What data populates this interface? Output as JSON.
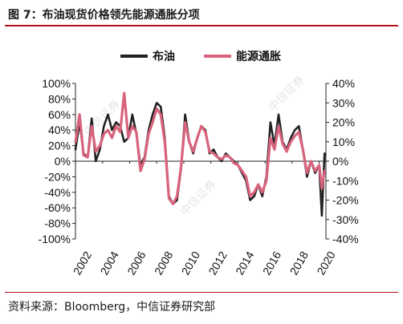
{
  "figure": {
    "title": "图 7：布油现货价格领先能源通胀分项",
    "source": "资料来源：Bloomberg，中信证券研究部",
    "watermark": "中信证券"
  },
  "chart_data": {
    "type": "line",
    "title": "",
    "xlabel": "",
    "ylabel": "",
    "xlim": [
      2002,
      2020.5
    ],
    "x_ticks": [
      "2002",
      "2004",
      "2006",
      "2008",
      "2010",
      "2012",
      "2014",
      "2016",
      "2018",
      "2020"
    ],
    "y_left": {
      "lim": [
        -100,
        100
      ],
      "ticks": [
        "100%",
        "80%",
        "60%",
        "40%",
        "20%",
        "0%",
        "-20%",
        "-40%",
        "-60%",
        "-80%",
        "-100%"
      ]
    },
    "y_right": {
      "lim": [
        -40,
        40
      ],
      "ticks": [
        "40%",
        "30%",
        "20%",
        "10%",
        "0%",
        "-10%",
        "-20%",
        "-30%",
        "-40%"
      ]
    },
    "legend_position": "top-center",
    "grid": false,
    "series": [
      {
        "name": "布油",
        "axis": "left",
        "color": "#222222",
        "x": [
          2002.0,
          2002.3,
          2002.6,
          2002.9,
          2003.2,
          2003.5,
          2003.8,
          2004.1,
          2004.4,
          2004.7,
          2005.0,
          2005.3,
          2005.6,
          2005.9,
          2006.2,
          2006.5,
          2006.8,
          2007.1,
          2007.4,
          2007.7,
          2008.0,
          2008.3,
          2008.6,
          2008.9,
          2009.2,
          2009.5,
          2009.8,
          2010.1,
          2010.4,
          2010.7,
          2011.0,
          2011.3,
          2011.6,
          2011.9,
          2012.2,
          2012.5,
          2012.8,
          2013.1,
          2013.4,
          2013.7,
          2014.0,
          2014.3,
          2014.6,
          2014.9,
          2015.2,
          2015.5,
          2015.8,
          2016.1,
          2016.4,
          2016.7,
          2017.0,
          2017.3,
          2017.6,
          2017.9,
          2018.2,
          2018.5,
          2018.8,
          2019.1,
          2019.4,
          2019.7,
          2020.0,
          2020.2,
          2020.4
        ],
        "values": [
          15,
          50,
          10,
          5,
          55,
          0,
          15,
          45,
          60,
          40,
          50,
          45,
          25,
          30,
          60,
          35,
          -5,
          5,
          40,
          60,
          75,
          70,
          30,
          -45,
          -55,
          -50,
          -10,
          60,
          25,
          10,
          30,
          45,
          40,
          10,
          15,
          5,
          0,
          10,
          5,
          0,
          -5,
          -15,
          -25,
          -50,
          -45,
          -30,
          -45,
          -20,
          50,
          20,
          60,
          25,
          15,
          30,
          40,
          45,
          15,
          -20,
          0,
          -15,
          -5,
          -70,
          10
        ]
      },
      {
        "name": "能源通胀",
        "axis": "right",
        "color": "#d9637c",
        "x": [
          2002.0,
          2002.3,
          2002.6,
          2002.9,
          2003.2,
          2003.5,
          2003.8,
          2004.1,
          2004.4,
          2004.7,
          2005.0,
          2005.3,
          2005.6,
          2005.9,
          2006.2,
          2006.5,
          2006.8,
          2007.1,
          2007.4,
          2007.7,
          2008.0,
          2008.3,
          2008.6,
          2008.9,
          2009.2,
          2009.5,
          2009.8,
          2010.1,
          2010.4,
          2010.7,
          2011.0,
          2011.3,
          2011.6,
          2011.9,
          2012.2,
          2012.5,
          2012.8,
          2013.1,
          2013.4,
          2013.7,
          2014.0,
          2014.3,
          2014.6,
          2014.9,
          2015.2,
          2015.5,
          2015.8,
          2016.1,
          2016.4,
          2016.7,
          2017.0,
          2017.3,
          2017.6,
          2017.9,
          2018.2,
          2018.5,
          2018.8,
          2019.1,
          2019.4,
          2019.7,
          2020.0,
          2020.2,
          2020.4
        ],
        "values": [
          10,
          24,
          3,
          2,
          18,
          5,
          8,
          14,
          16,
          12,
          18,
          15,
          35,
          12,
          18,
          15,
          -5,
          1,
          14,
          20,
          27,
          24,
          10,
          -19,
          -22,
          -18,
          -3,
          20,
          10,
          5,
          12,
          18,
          15,
          5,
          4,
          2,
          1,
          3,
          2,
          -1,
          -2,
          -5,
          -8,
          -18,
          -16,
          -12,
          -16,
          -10,
          12,
          6,
          18,
          9,
          5,
          10,
          13,
          15,
          6,
          -6,
          0,
          -5,
          -2,
          -14,
          -5
        ]
      }
    ]
  }
}
